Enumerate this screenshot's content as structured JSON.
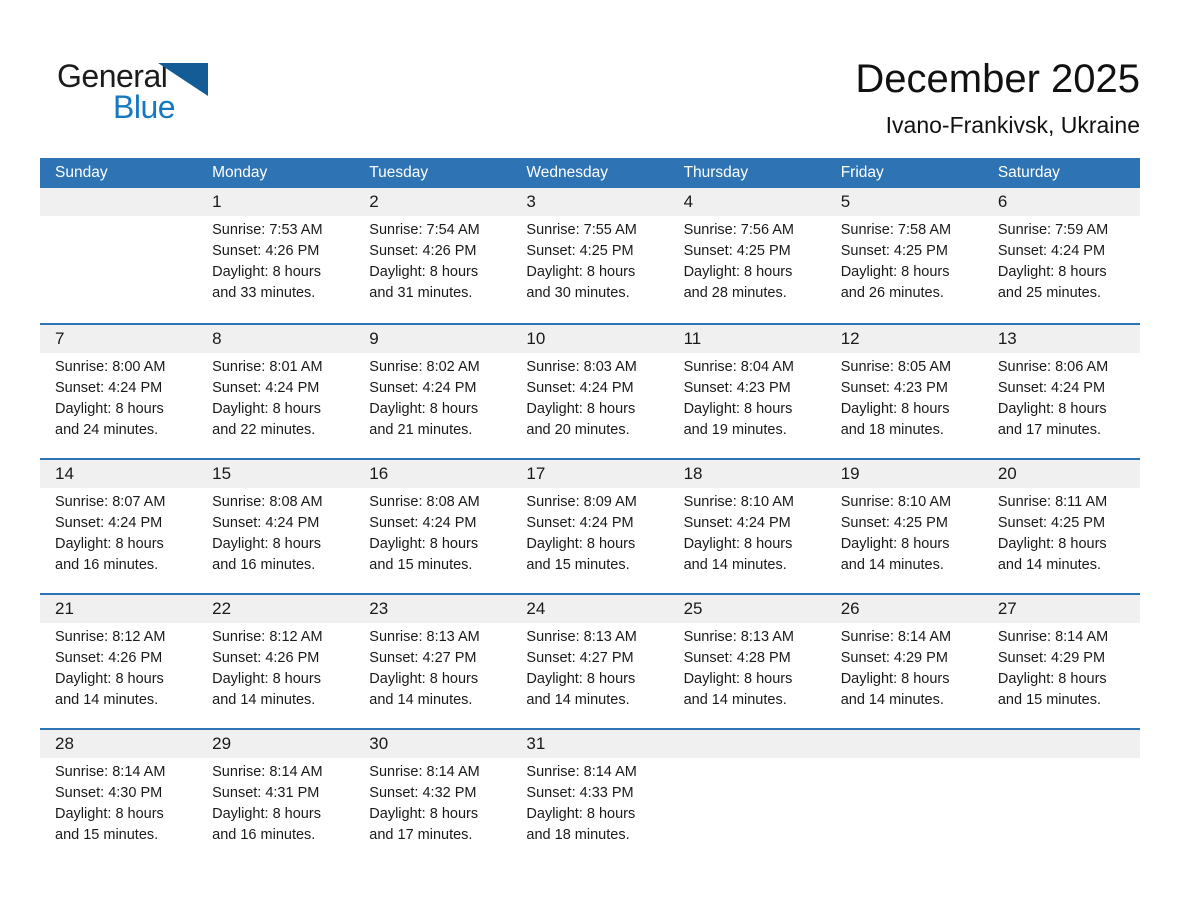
{
  "logo": {
    "general": "General",
    "blue": "Blue"
  },
  "header": {
    "title": "December 2025",
    "subtitle": "Ivano-Frankivsk, Ukraine"
  },
  "weekdays": [
    "Sunday",
    "Monday",
    "Tuesday",
    "Wednesday",
    "Thursday",
    "Friday",
    "Saturday"
  ],
  "labels": {
    "sunrise_prefix": "Sunrise:",
    "sunset_prefix": "Sunset:",
    "daylight_prefix": "Daylight:",
    "hours_word": "hours",
    "and_word": "and",
    "minutes_word": "minutes."
  },
  "colors": {
    "header_blue": "#2e74b5",
    "week_divider_blue": "#2e74b5",
    "day_band_gray": "#f0f0f0",
    "logo_blue": "#1479c2",
    "logo_triangle_blue": "#135c95",
    "text_dark": "#1a1a1a"
  },
  "weeks": [
    [
      null,
      {
        "day": "1",
        "sunrise": "7:53 AM",
        "sunset": "4:26 PM",
        "daylight_hours": 8,
        "daylight_minutes": 33
      },
      {
        "day": "2",
        "sunrise": "7:54 AM",
        "sunset": "4:26 PM",
        "daylight_hours": 8,
        "daylight_minutes": 31
      },
      {
        "day": "3",
        "sunrise": "7:55 AM",
        "sunset": "4:25 PM",
        "daylight_hours": 8,
        "daylight_minutes": 30
      },
      {
        "day": "4",
        "sunrise": "7:56 AM",
        "sunset": "4:25 PM",
        "daylight_hours": 8,
        "daylight_minutes": 28
      },
      {
        "day": "5",
        "sunrise": "7:58 AM",
        "sunset": "4:25 PM",
        "daylight_hours": 8,
        "daylight_minutes": 26
      },
      {
        "day": "6",
        "sunrise": "7:59 AM",
        "sunset": "4:24 PM",
        "daylight_hours": 8,
        "daylight_minutes": 25
      }
    ],
    [
      {
        "day": "7",
        "sunrise": "8:00 AM",
        "sunset": "4:24 PM",
        "daylight_hours": 8,
        "daylight_minutes": 24
      },
      {
        "day": "8",
        "sunrise": "8:01 AM",
        "sunset": "4:24 PM",
        "daylight_hours": 8,
        "daylight_minutes": 22
      },
      {
        "day": "9",
        "sunrise": "8:02 AM",
        "sunset": "4:24 PM",
        "daylight_hours": 8,
        "daylight_minutes": 21
      },
      {
        "day": "10",
        "sunrise": "8:03 AM",
        "sunset": "4:24 PM",
        "daylight_hours": 8,
        "daylight_minutes": 20
      },
      {
        "day": "11",
        "sunrise": "8:04 AM",
        "sunset": "4:23 PM",
        "daylight_hours": 8,
        "daylight_minutes": 19
      },
      {
        "day": "12",
        "sunrise": "8:05 AM",
        "sunset": "4:23 PM",
        "daylight_hours": 8,
        "daylight_minutes": 18
      },
      {
        "day": "13",
        "sunrise": "8:06 AM",
        "sunset": "4:24 PM",
        "daylight_hours": 8,
        "daylight_minutes": 17
      }
    ],
    [
      {
        "day": "14",
        "sunrise": "8:07 AM",
        "sunset": "4:24 PM",
        "daylight_hours": 8,
        "daylight_minutes": 16
      },
      {
        "day": "15",
        "sunrise": "8:08 AM",
        "sunset": "4:24 PM",
        "daylight_hours": 8,
        "daylight_minutes": 16
      },
      {
        "day": "16",
        "sunrise": "8:08 AM",
        "sunset": "4:24 PM",
        "daylight_hours": 8,
        "daylight_minutes": 15
      },
      {
        "day": "17",
        "sunrise": "8:09 AM",
        "sunset": "4:24 PM",
        "daylight_hours": 8,
        "daylight_minutes": 15
      },
      {
        "day": "18",
        "sunrise": "8:10 AM",
        "sunset": "4:24 PM",
        "daylight_hours": 8,
        "daylight_minutes": 14
      },
      {
        "day": "19",
        "sunrise": "8:10 AM",
        "sunset": "4:25 PM",
        "daylight_hours": 8,
        "daylight_minutes": 14
      },
      {
        "day": "20",
        "sunrise": "8:11 AM",
        "sunset": "4:25 PM",
        "daylight_hours": 8,
        "daylight_minutes": 14
      }
    ],
    [
      {
        "day": "21",
        "sunrise": "8:12 AM",
        "sunset": "4:26 PM",
        "daylight_hours": 8,
        "daylight_minutes": 14
      },
      {
        "day": "22",
        "sunrise": "8:12 AM",
        "sunset": "4:26 PM",
        "daylight_hours": 8,
        "daylight_minutes": 14
      },
      {
        "day": "23",
        "sunrise": "8:13 AM",
        "sunset": "4:27 PM",
        "daylight_hours": 8,
        "daylight_minutes": 14
      },
      {
        "day": "24",
        "sunrise": "8:13 AM",
        "sunset": "4:27 PM",
        "daylight_hours": 8,
        "daylight_minutes": 14
      },
      {
        "day": "25",
        "sunrise": "8:13 AM",
        "sunset": "4:28 PM",
        "daylight_hours": 8,
        "daylight_minutes": 14
      },
      {
        "day": "26",
        "sunrise": "8:14 AM",
        "sunset": "4:29 PM",
        "daylight_hours": 8,
        "daylight_minutes": 14
      },
      {
        "day": "27",
        "sunrise": "8:14 AM",
        "sunset": "4:29 PM",
        "daylight_hours": 8,
        "daylight_minutes": 15
      }
    ],
    [
      {
        "day": "28",
        "sunrise": "8:14 AM",
        "sunset": "4:30 PM",
        "daylight_hours": 8,
        "daylight_minutes": 15
      },
      {
        "day": "29",
        "sunrise": "8:14 AM",
        "sunset": "4:31 PM",
        "daylight_hours": 8,
        "daylight_minutes": 16
      },
      {
        "day": "30",
        "sunrise": "8:14 AM",
        "sunset": "4:32 PM",
        "daylight_hours": 8,
        "daylight_minutes": 17
      },
      {
        "day": "31",
        "sunrise": "8:14 AM",
        "sunset": "4:33 PM",
        "daylight_hours": 8,
        "daylight_minutes": 18
      },
      null,
      null,
      null
    ]
  ]
}
